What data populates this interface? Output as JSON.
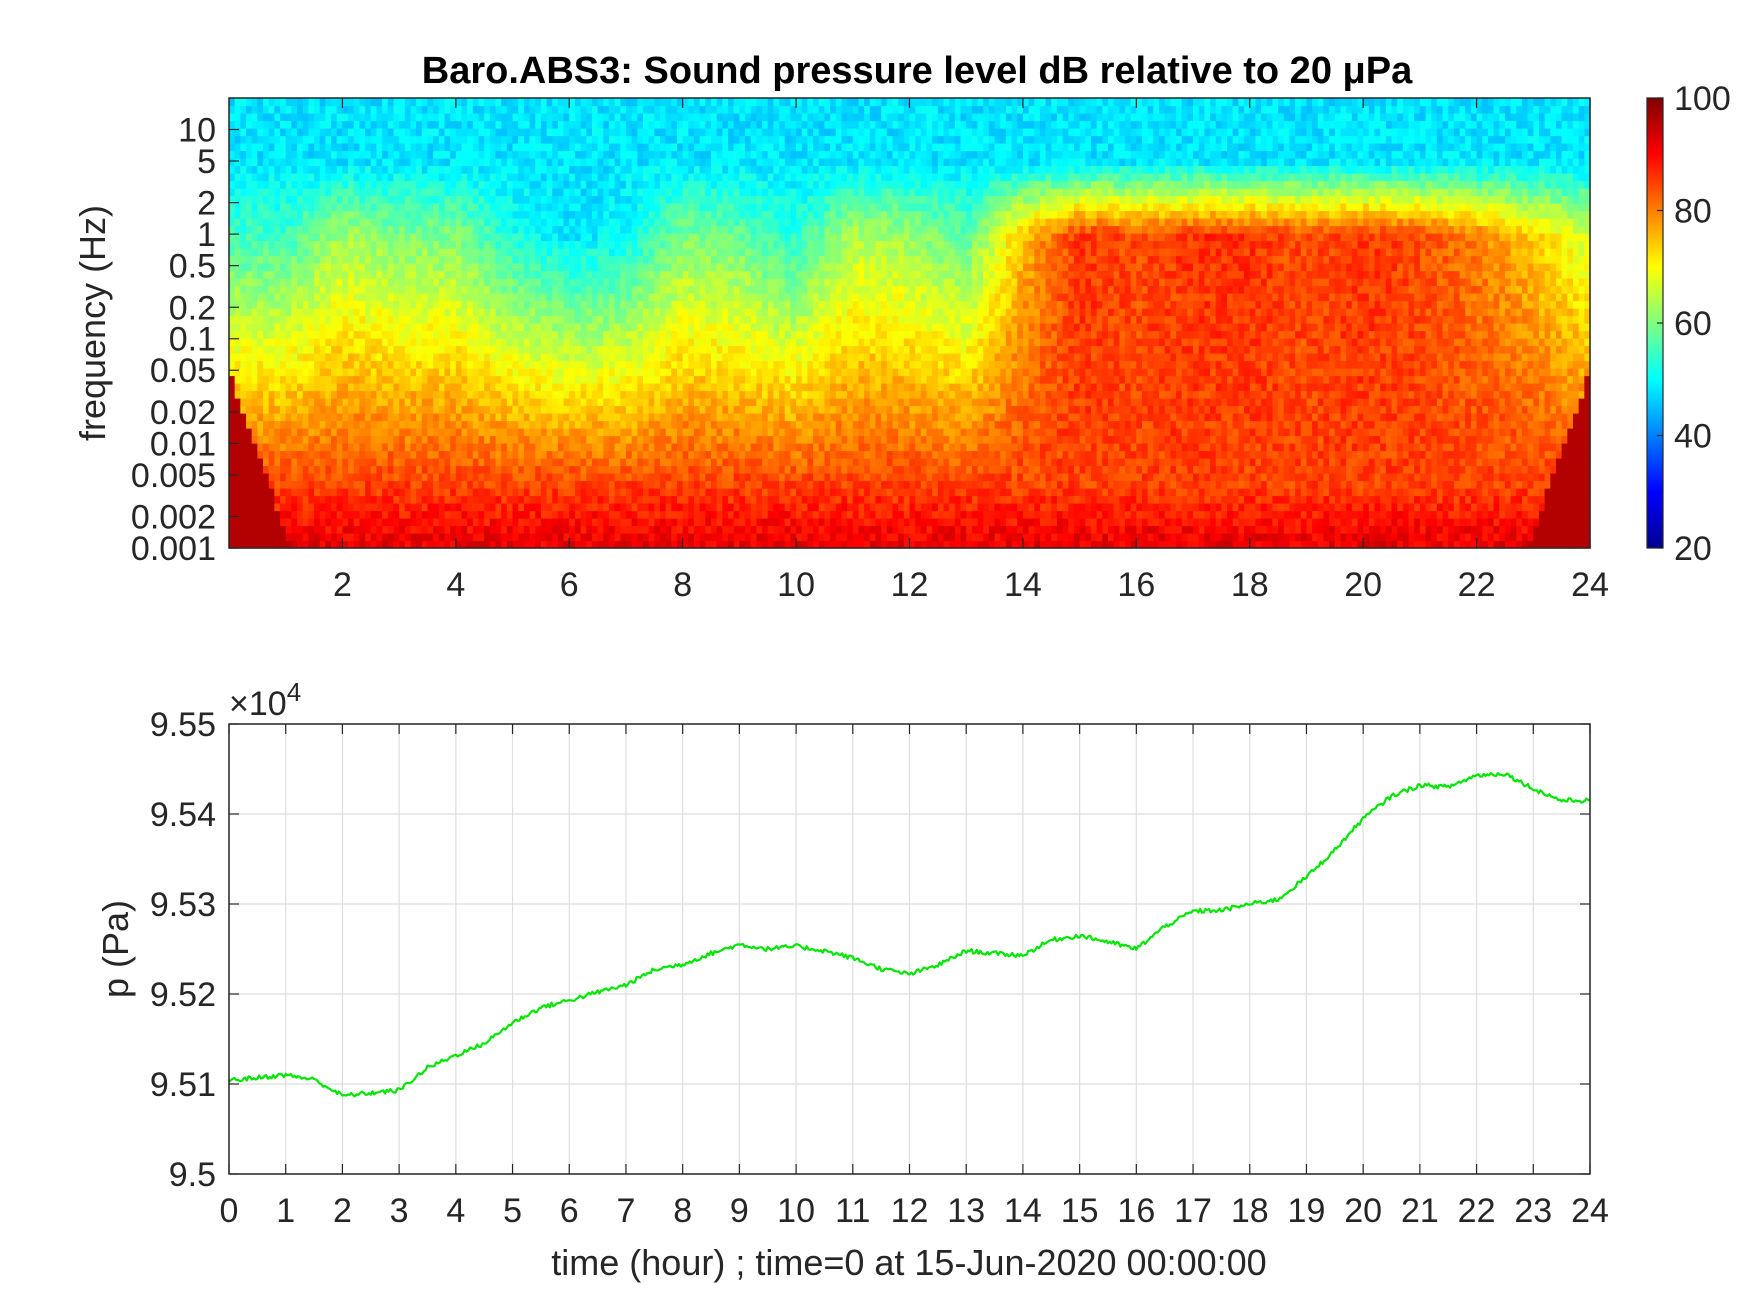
{
  "chart_data": [
    {
      "type": "heatmap",
      "title": "Baro.ABS3: Sound pressure level dB relative to 20 μPa",
      "xlabel": "",
      "ylabel": "frequency (Hz)",
      "xlim": [
        0,
        24
      ],
      "x_ticks": [
        2,
        4,
        6,
        8,
        10,
        12,
        14,
        16,
        18,
        20,
        22,
        24
      ],
      "y_scale": "log",
      "ylim": [
        0.001,
        20
      ],
      "y_ticks": [
        0.001,
        0.002,
        0.005,
        0.01,
        0.02,
        0.05,
        0.1,
        0.2,
        0.5,
        1,
        2,
        5,
        10
      ],
      "y_tick_labels": [
        "0.001",
        "0.002",
        "0.005",
        "0.01",
        "0.02",
        "0.05",
        "0.1",
        "0.2",
        "0.5",
        "1",
        "2",
        "5",
        "10"
      ],
      "colorbar": {
        "range": [
          20,
          100
        ],
        "ticks": [
          20,
          40,
          60,
          80,
          100
        ],
        "colormap": "jet"
      },
      "x_hours": [
        0,
        1,
        2,
        3,
        4,
        5,
        6,
        7,
        8,
        9,
        10,
        11,
        12,
        13,
        14,
        15,
        16,
        17,
        18,
        19,
        20,
        21,
        22,
        23,
        24
      ],
      "quiet_level_db": [
        55,
        55,
        63,
        60,
        60,
        52,
        48,
        50,
        60,
        58,
        53,
        64,
        62,
        57,
        75,
        86,
        84,
        86,
        86,
        84,
        86,
        84,
        80,
        74,
        66
      ]
    },
    {
      "type": "line",
      "title": "",
      "xlabel": "time (hour) ; time=0 at 15-Jun-2020 00:00:00",
      "ylabel": "p (Pa)",
      "y_exponent_label": "×10",
      "y_exponent": "4",
      "xlim": [
        0,
        24
      ],
      "ylim": [
        95000,
        95500
      ],
      "x_ticks": [
        0,
        1,
        2,
        3,
        4,
        5,
        6,
        7,
        8,
        9,
        10,
        11,
        12,
        13,
        14,
        15,
        16,
        17,
        18,
        19,
        20,
        21,
        22,
        23,
        24
      ],
      "y_ticks": [
        95000,
        95100,
        95200,
        95300,
        95400,
        95500
      ],
      "y_tick_labels": [
        "9.5",
        "9.51",
        "9.52",
        "9.53",
        "9.54",
        "9.55"
      ],
      "grid": true,
      "line_color": "#00e600",
      "x": [
        0,
        0.5,
        1,
        1.5,
        2,
        2.5,
        3,
        3.5,
        4,
        4.5,
        5,
        5.5,
        6,
        6.5,
        7,
        7.5,
        8,
        8.5,
        9,
        9.5,
        10,
        10.5,
        11,
        11.5,
        12,
        12.5,
        13,
        13.5,
        14,
        14.5,
        15,
        15.5,
        16,
        16.5,
        17,
        17.5,
        18,
        18.5,
        19,
        19.5,
        20,
        20.5,
        21,
        21.5,
        22,
        22.5,
        23,
        23.5,
        24
      ],
      "y": [
        95104,
        95107,
        95110,
        95105,
        95087,
        95090,
        95093,
        95118,
        95132,
        95145,
        95168,
        95185,
        95193,
        95202,
        95210,
        95227,
        95233,
        95245,
        95255,
        95250,
        95253,
        95248,
        95240,
        95228,
        95222,
        95232,
        95248,
        95245,
        95243,
        95260,
        95265,
        95258,
        95250,
        95275,
        95292,
        95293,
        95300,
        95305,
        95330,
        95360,
        95395,
        95420,
        95432,
        95430,
        95443,
        95445,
        95428,
        95415,
        95415
      ]
    }
  ]
}
